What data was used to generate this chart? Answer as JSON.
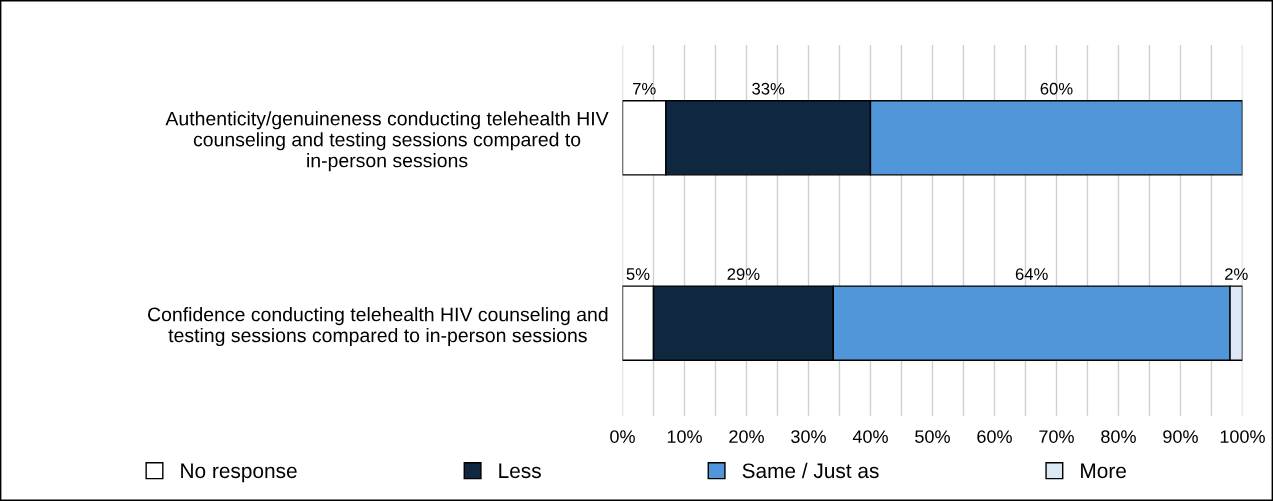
{
  "chart_data": {
    "type": "bar",
    "orientation": "horizontal",
    "stacked": true,
    "categories": [
      "Authenticity/genuineness conducting telehealth HIV counseling and testing sessions compared to in-person sessions",
      "Confidence conducting telehealth HIV counseling and testing sessions compared to in-person sessions"
    ],
    "series": [
      {
        "name": "No response",
        "color": "#ffffff",
        "values": [
          7,
          5
        ],
        "value_labels": [
          "7%",
          "5%"
        ]
      },
      {
        "name": "Less",
        "color": "#10283f",
        "values": [
          33,
          29
        ],
        "value_labels": [
          "33%",
          "29%"
        ]
      },
      {
        "name": "Same / Just as",
        "color": "#5096d9",
        "values": [
          60,
          64
        ],
        "value_labels": [
          "60%",
          "64%"
        ]
      },
      {
        "name": "More",
        "color": "#dce8f5",
        "values": [
          null,
          2
        ],
        "value_labels": [
          null,
          "2%"
        ]
      }
    ],
    "xlim": [
      0,
      100
    ],
    "xticks": [
      {
        "value": 0,
        "label": "0%"
      },
      {
        "value": 5,
        "label": null
      },
      {
        "value": 10,
        "label": "10%"
      },
      {
        "value": 15,
        "label": null
      },
      {
        "value": 20,
        "label": "20%"
      },
      {
        "value": 25,
        "label": null
      },
      {
        "value": 30,
        "label": "30%"
      },
      {
        "value": 35,
        "label": null
      },
      {
        "value": 40,
        "label": "40%"
      },
      {
        "value": 45,
        "label": null
      },
      {
        "value": 50,
        "label": "50%"
      },
      {
        "value": 55,
        "label": null
      },
      {
        "value": 60,
        "label": "60%"
      },
      {
        "value": 65,
        "label": null
      },
      {
        "value": 70,
        "label": "70%"
      },
      {
        "value": 75,
        "label": null
      },
      {
        "value": 80,
        "label": "80%"
      },
      {
        "value": 85,
        "label": null
      },
      {
        "value": 90,
        "label": "90%"
      },
      {
        "value": 95,
        "label": null
      },
      {
        "value": 100,
        "label": "100%"
      }
    ],
    "grid": "x",
    "legend": "bottom"
  }
}
